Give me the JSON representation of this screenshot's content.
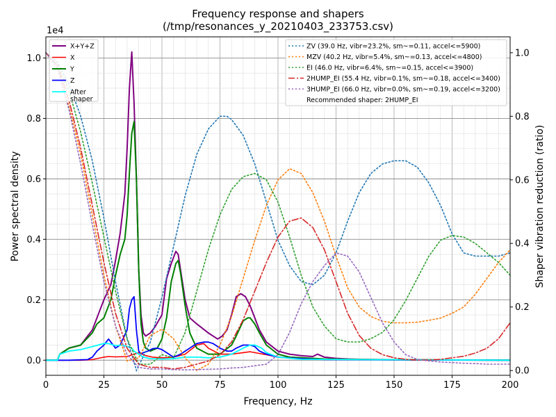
{
  "chart_data": {
    "type": "line",
    "title": "Frequency response and shapers",
    "subtitle": "(/tmp/resonances_y_20210403_233753.csv)",
    "xlabel": "Frequency, Hz",
    "ylabel": "Power spectral density",
    "y2label": "Shaper vibration reduction (ratio)",
    "y_scale_label": "1e4",
    "xlim": [
      0,
      200
    ],
    "ylim": [
      -0.05,
      1.07
    ],
    "y2lim": [
      -0.015,
      1.05
    ],
    "xticks": [
      0,
      25,
      50,
      75,
      100,
      125,
      150,
      175,
      200
    ],
    "yticks": [
      0.0,
      0.2,
      0.4,
      0.6,
      0.8,
      1.0
    ],
    "y2ticks": [
      0.0,
      0.2,
      0.4,
      0.6,
      0.8,
      1.0
    ],
    "grid": true,
    "psd_legend_location": "top-left",
    "shaper_legend_location": "top-right",
    "psd_series": [
      {
        "name": "X+Y+Z",
        "color": "#800080",
        "width": 2,
        "x": [
          0,
          5,
          6,
          10,
          15,
          20,
          25,
          28,
          30,
          32,
          34,
          35,
          36,
          37,
          38,
          39,
          40,
          41,
          42,
          43,
          45,
          47,
          50,
          52,
          54,
          56,
          57,
          58,
          60,
          62,
          65,
          70,
          74,
          76,
          78,
          80,
          82,
          84,
          86,
          88,
          90,
          92,
          95,
          100,
          105,
          110,
          115,
          117,
          120,
          125,
          130,
          135,
          140,
          150,
          200
        ],
        "y": [
          0,
          0,
          0.02,
          0.04,
          0.05,
          0.1,
          0.2,
          0.25,
          0.33,
          0.42,
          0.55,
          0.7,
          0.9,
          1.02,
          0.85,
          0.6,
          0.3,
          0.15,
          0.09,
          0.08,
          0.09,
          0.11,
          0.15,
          0.27,
          0.32,
          0.36,
          0.35,
          0.3,
          0.2,
          0.14,
          0.12,
          0.09,
          0.07,
          0.08,
          0.1,
          0.15,
          0.21,
          0.22,
          0.21,
          0.18,
          0.14,
          0.1,
          0.06,
          0.03,
          0.02,
          0.015,
          0.012,
          0.02,
          0.01,
          0.006,
          0.004,
          0.003,
          0.002,
          0.001,
          0.0
        ]
      },
      {
        "name": "X",
        "color": "#ff0000",
        "width": 1.6,
        "x": [
          0,
          10,
          15,
          20,
          25,
          27,
          30,
          35,
          38,
          40,
          43,
          46,
          50,
          55,
          60,
          65,
          68,
          70,
          75,
          80,
          85,
          88,
          90,
          95,
          100,
          110,
          200
        ],
        "y": [
          0,
          0,
          0,
          0.002,
          0.01,
          0.012,
          0.011,
          0.012,
          0.02,
          0.025,
          0.015,
          0.01,
          0.008,
          0.01,
          0.02,
          0.05,
          0.055,
          0.04,
          0.02,
          0.02,
          0.025,
          0.028,
          0.025,
          0.018,
          0.01,
          0.004,
          0.0
        ]
      },
      {
        "name": "Y",
        "color": "#008000",
        "width": 2,
        "x": [
          0,
          5,
          6,
          10,
          15,
          20,
          22,
          25,
          28,
          30,
          32,
          34,
          35,
          36,
          37,
          38,
          39,
          40,
          41,
          42,
          43,
          45,
          48,
          50,
          52,
          54,
          56,
          57,
          58,
          60,
          62,
          65,
          70,
          75,
          80,
          82,
          85,
          87,
          88,
          90,
          92,
          95,
          100,
          105,
          110,
          115,
          120,
          130,
          140,
          200
        ],
        "y": [
          0,
          0,
          0.02,
          0.04,
          0.05,
          0.09,
          0.12,
          0.14,
          0.2,
          0.28,
          0.35,
          0.4,
          0.48,
          0.62,
          0.75,
          0.79,
          0.6,
          0.3,
          0.12,
          0.06,
          0.04,
          0.03,
          0.04,
          0.07,
          0.14,
          0.26,
          0.32,
          0.33,
          0.29,
          0.18,
          0.09,
          0.04,
          0.02,
          0.02,
          0.05,
          0.08,
          0.13,
          0.14,
          0.14,
          0.12,
          0.09,
          0.05,
          0.02,
          0.01,
          0.008,
          0.006,
          0.004,
          0.003,
          0.002,
          0.0
        ]
      },
      {
        "name": "Z",
        "color": "#0000ff",
        "width": 1.8,
        "x": [
          0,
          10,
          18,
          20,
          22,
          25,
          26,
          27,
          28,
          30,
          32,
          35,
          36,
          37,
          38,
          39,
          40,
          41,
          42,
          44,
          46,
          48,
          50,
          52,
          55,
          58,
          60,
          62,
          65,
          68,
          70,
          72,
          75,
          78,
          80,
          82,
          85,
          88,
          90,
          92,
          95,
          100,
          110,
          120,
          200
        ],
        "y": [
          0,
          0,
          0.002,
          0.01,
          0.03,
          0.05,
          0.06,
          0.07,
          0.06,
          0.04,
          0.05,
          0.1,
          0.17,
          0.2,
          0.21,
          0.1,
          0.03,
          0.02,
          0.025,
          0.03,
          0.038,
          0.04,
          0.035,
          0.025,
          0.01,
          0.02,
          0.03,
          0.04,
          0.055,
          0.06,
          0.06,
          0.055,
          0.04,
          0.03,
          0.03,
          0.04,
          0.05,
          0.05,
          0.045,
          0.03,
          0.02,
          0.01,
          0.005,
          0.002,
          0.0
        ]
      },
      {
        "name": "After\nshaper",
        "color": "#00ffff",
        "width": 1.8,
        "x": [
          0,
          5,
          6,
          10,
          15,
          20,
          25,
          27,
          30,
          33,
          35,
          37,
          38,
          40,
          42,
          45,
          50,
          55,
          60,
          65,
          70,
          75,
          80,
          85,
          88,
          90,
          93,
          95,
          100,
          110,
          200
        ],
        "y": [
          0,
          0,
          0.02,
          0.03,
          0.035,
          0.045,
          0.055,
          0.055,
          0.048,
          0.05,
          0.045,
          0.04,
          0.03,
          0.02,
          0.01,
          0.005,
          0.004,
          0.005,
          0.01,
          0.01,
          0.008,
          0.01,
          0.02,
          0.04,
          0.05,
          0.05,
          0.04,
          0.025,
          0.01,
          0.003,
          0.0
        ]
      }
    ],
    "shaper_series": [
      {
        "name": "ZV (39.0 Hz, vibr=23.2%, sm~=0.11, accel<=5900)",
        "color": "#1f77b4",
        "dash": "2 3",
        "x": [
          0,
          5,
          10,
          15,
          20,
          25,
          30,
          35,
          39,
          45,
          50,
          55,
          60,
          65,
          70,
          75,
          78,
          80,
          85,
          90,
          95,
          100,
          105,
          110,
          115,
          120,
          125,
          130,
          135,
          140,
          145,
          150,
          155,
          160,
          165,
          170,
          175,
          180,
          185,
          190,
          195,
          200
        ],
        "y": [
          1.0,
          0.97,
          0.9,
          0.8,
          0.66,
          0.48,
          0.28,
          0.1,
          0.0,
          0.09,
          0.23,
          0.39,
          0.55,
          0.68,
          0.76,
          0.8,
          0.8,
          0.79,
          0.74,
          0.65,
          0.53,
          0.41,
          0.33,
          0.28,
          0.27,
          0.3,
          0.37,
          0.47,
          0.56,
          0.62,
          0.65,
          0.66,
          0.66,
          0.64,
          0.59,
          0.52,
          0.43,
          0.37,
          0.36,
          0.36,
          0.36,
          0.37
        ]
      },
      {
        "name": "MZV (40.2 Hz, vibr=5.4%, sm~=0.13, accel<=4800)",
        "color": "#ff7f0e",
        "dash": "2 3",
        "x": [
          0,
          5,
          10,
          15,
          20,
          25,
          30,
          35,
          40,
          45,
          50,
          55,
          60,
          65,
          70,
          75,
          80,
          85,
          90,
          95,
          100,
          105,
          110,
          115,
          120,
          125,
          130,
          135,
          140,
          145,
          150,
          155,
          160,
          165,
          170,
          175,
          180,
          185,
          190,
          195,
          200
        ],
        "y": [
          1.0,
          0.95,
          0.83,
          0.68,
          0.49,
          0.3,
          0.14,
          0.03,
          0.04,
          0.11,
          0.13,
          0.1,
          0.04,
          0.0,
          0.02,
          0.08,
          0.17,
          0.29,
          0.41,
          0.52,
          0.6,
          0.635,
          0.62,
          0.56,
          0.47,
          0.36,
          0.26,
          0.2,
          0.17,
          0.155,
          0.15,
          0.15,
          0.152,
          0.158,
          0.165,
          0.18,
          0.2,
          0.24,
          0.29,
          0.34,
          0.38
        ]
      },
      {
        "name": "EI (46.0 Hz, vibr=6.4%, sm~=0.15, accel<=3900)",
        "color": "#2ca02c",
        "dash": "2 3",
        "x": [
          0,
          5,
          10,
          15,
          20,
          25,
          30,
          35,
          40,
          45,
          50,
          55,
          60,
          65,
          70,
          75,
          80,
          85,
          90,
          95,
          100,
          105,
          110,
          115,
          120,
          125,
          130,
          135,
          140,
          145,
          150,
          155,
          160,
          165,
          170,
          175,
          180,
          185,
          190,
          195,
          200
        ],
        "y": [
          1.0,
          0.96,
          0.88,
          0.75,
          0.59,
          0.42,
          0.25,
          0.1,
          0.02,
          0.02,
          0.05,
          0.04,
          0.12,
          0.25,
          0.38,
          0.49,
          0.57,
          0.61,
          0.62,
          0.6,
          0.53,
          0.42,
          0.3,
          0.2,
          0.14,
          0.1,
          0.09,
          0.09,
          0.1,
          0.12,
          0.16,
          0.22,
          0.29,
          0.36,
          0.41,
          0.425,
          0.42,
          0.4,
          0.37,
          0.34,
          0.3
        ]
      },
      {
        "name": "2HUMP_EI (55.4 Hz, vibr=0.1%, sm~=0.18, accel<=3400)",
        "color": "#d62728",
        "dash": "9 3 2 3",
        "x": [
          0,
          5,
          10,
          15,
          20,
          25,
          30,
          35,
          40,
          45,
          50,
          55,
          60,
          65,
          70,
          75,
          80,
          85,
          90,
          95,
          100,
          105,
          110,
          115,
          120,
          125,
          130,
          135,
          140,
          145,
          150,
          155,
          160,
          165,
          170,
          175,
          180,
          185,
          190,
          195,
          200
        ],
        "y": [
          1.0,
          0.96,
          0.85,
          0.7,
          0.52,
          0.34,
          0.18,
          0.07,
          0.02,
          0.01,
          0.01,
          0.005,
          0.01,
          0.02,
          0.03,
          0.05,
          0.09,
          0.16,
          0.25,
          0.34,
          0.42,
          0.47,
          0.48,
          0.45,
          0.38,
          0.28,
          0.18,
          0.11,
          0.07,
          0.05,
          0.04,
          0.035,
          0.033,
          0.033,
          0.035,
          0.04,
          0.045,
          0.055,
          0.07,
          0.1,
          0.15
        ]
      },
      {
        "name": "3HUMP_EI (66.0 Hz, vibr=0.0%, sm~=0.19, accel<=3200)",
        "color": "#9467bd",
        "dash": "2 3",
        "x": [
          0,
          5,
          10,
          15,
          20,
          25,
          30,
          35,
          40,
          45,
          50,
          55,
          60,
          65,
          70,
          75,
          80,
          85,
          90,
          95,
          100,
          105,
          110,
          115,
          120,
          125,
          130,
          135,
          140,
          145,
          150,
          155,
          160,
          165,
          170,
          175,
          180,
          185,
          190,
          195,
          200
        ],
        "y": [
          1.0,
          0.95,
          0.82,
          0.65,
          0.46,
          0.28,
          0.14,
          0.05,
          0.01,
          0.005,
          0.005,
          0.003,
          0.002,
          0.003,
          0.004,
          0.005,
          0.008,
          0.01,
          0.015,
          0.02,
          0.05,
          0.12,
          0.21,
          0.28,
          0.33,
          0.37,
          0.36,
          0.31,
          0.23,
          0.15,
          0.09,
          0.05,
          0.035,
          0.03,
          0.027,
          0.025,
          0.023,
          0.022,
          0.02,
          0.02,
          0.02
        ]
      }
    ],
    "legend_note": "Recommended shaper: 2HUMP_EI"
  }
}
